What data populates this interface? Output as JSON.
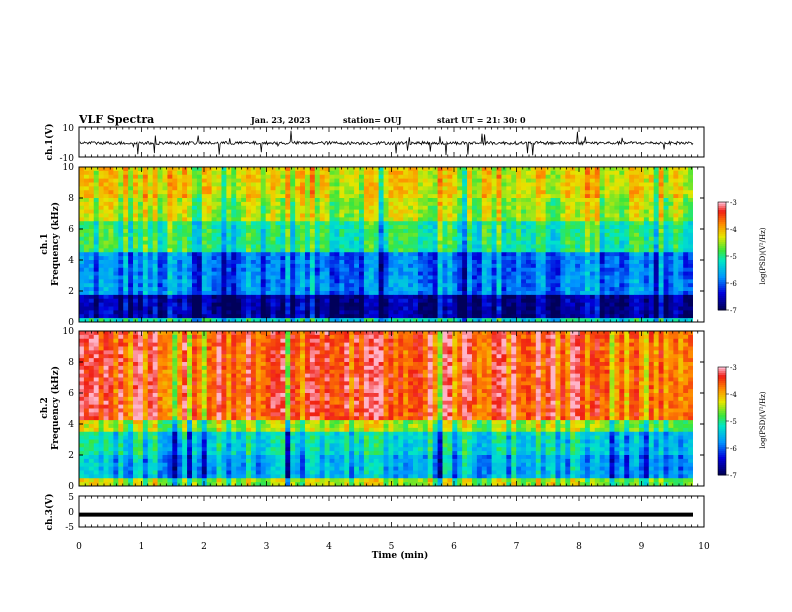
{
  "header": {
    "title": "VLF Spectra",
    "date": "Jan. 23, 2023",
    "station": "station= OUJ",
    "start": "start  UT  =   21: 30: 0"
  },
  "chart_data": [
    {
      "type": "line",
      "ylabel": "ch.1(V)",
      "ylim": [
        -10,
        10
      ],
      "yticks": [
        "10",
        "-10"
      ],
      "x_range_min": [
        0,
        9.8
      ],
      "description_level_mean": 0
    },
    {
      "type": "heatmap",
      "ylabel_line1": "ch.1",
      "ylabel_line2": "Frequency (kHz)",
      "ylim": [
        0,
        10
      ],
      "yticks": [
        "0",
        "2",
        "4",
        "6",
        "8",
        "10"
      ],
      "colorbar": {
        "label": "log(PSD)(V²/Hz)",
        "ticks": [
          "-3",
          "-4",
          "-5",
          "-6",
          "-7"
        ],
        "range": [
          -7,
          -3
        ]
      }
    },
    {
      "type": "heatmap",
      "ylabel_line1": "ch.2",
      "ylabel_line2": "Frequency (kHz)",
      "ylim": [
        0,
        10
      ],
      "yticks": [
        "0",
        "2",
        "4",
        "6",
        "8",
        "10"
      ],
      "colorbar": {
        "label": "log(PSD)(V²/Hz)",
        "ticks": [
          "-3",
          "-4",
          "-5",
          "-6",
          "-7"
        ],
        "range": [
          -7,
          -3
        ]
      }
    },
    {
      "type": "line",
      "ylabel": "ch.3(V)",
      "ylim": [
        -5,
        5
      ],
      "yticks": [
        "5",
        "0",
        "-5"
      ],
      "series_level": -1
    }
  ],
  "xaxis": {
    "label": "Time  (min)",
    "ticks": [
      "0",
      "1",
      "2",
      "3",
      "4",
      "5",
      "6",
      "7",
      "8",
      "9",
      "10"
    ],
    "range": [
      0,
      10
    ]
  }
}
